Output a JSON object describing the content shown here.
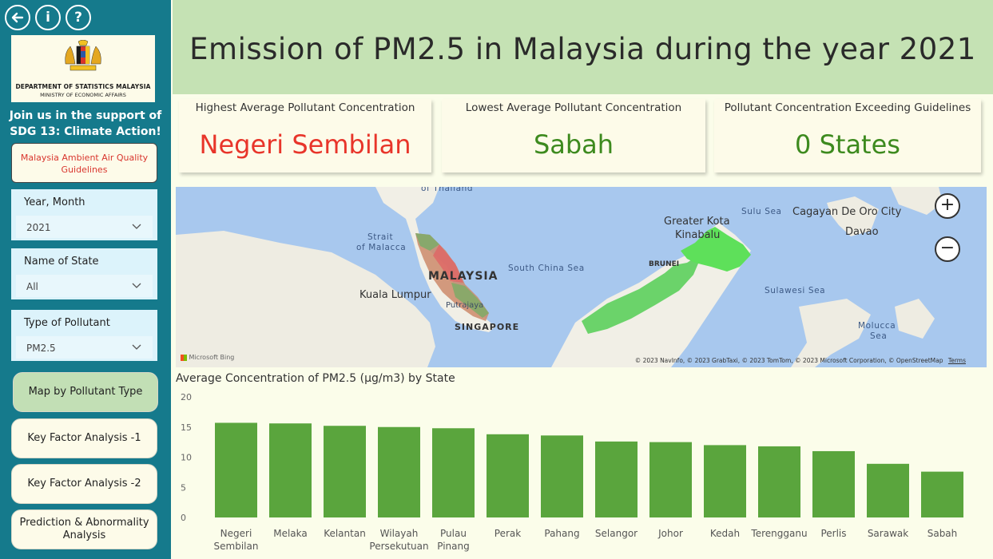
{
  "nav": {
    "back": "back-arrow-icon",
    "info_label": "i",
    "help_label": "?"
  },
  "logo": {
    "title": "DEPARTMENT OF STATISTICS MALAYSIA",
    "subtitle": "MINISTRY OF ECONOMIC AFFAIRS"
  },
  "sidebar": {
    "join_text": "Join us in the support of SDG 13: Climate Action!",
    "guidelines_button": "Malaysia Ambient Air Quality Guidelines",
    "filters": [
      {
        "label": "Year, Month",
        "value": "2021"
      },
      {
        "label": "Name of State",
        "value": "All"
      },
      {
        "label": "Type of Pollutant",
        "value": "PM2.5"
      }
    ],
    "buttons": [
      "Map by Pollutant Type",
      "Key Factor Analysis -1",
      "Key Factor Analysis -2",
      "Prediction & Abnormality Analysis"
    ]
  },
  "header": {
    "title": "Emission of PM2.5 in Malaysia during the year 2021"
  },
  "kpis": [
    {
      "label": "Highest Average Pollutant Concentration",
      "value": "Negeri Sembilan",
      "color": "#e8352a"
    },
    {
      "label": "Lowest Average Pollutant Concentration",
      "value": "Sabah",
      "color": "#3d8a1e"
    },
    {
      "label": "Pollutant Concentration Exceeding Guidelines",
      "value": "0 States",
      "color": "#3d8a1e"
    }
  ],
  "map": {
    "labels": {
      "thailand": "of Thailand",
      "strait": "Strait",
      "strait2": "of Malacca",
      "malaysia": "MALAYSIA",
      "kl": "Kuala Lumpur",
      "putrajaya": "Putrajaya",
      "singapore": "SINGAPORE",
      "south_china_sea": "South China Sea",
      "brunei": "BRUNEI",
      "kk": "Greater Kota",
      "kk2": "Kinabalu",
      "sulu": "Sulu Sea",
      "cagayan": "Cagayan De Oro City",
      "davao": "Davao",
      "sulawesi": "Sulawesi Sea",
      "molucca": "Molucca",
      "molucca2": "Sea"
    },
    "zoom_in": "+",
    "zoom_out": "−",
    "bing": "Microsoft Bing",
    "attribution": "© 2023 NavInfo, © 2023 GrabTaxi, © 2023 TomTom, © 2023 Microsoft Corporation, © OpenStreetMap",
    "terms": "Terms"
  },
  "chart_title": "Average Concentration of PM2.5 (µg/m3) by State",
  "chart_data": {
    "type": "bar",
    "title": "Average Concentration of PM2.5 (µg/m3) by State",
    "categories": [
      "Negeri Sembilan",
      "Melaka",
      "Kelantan",
      "Wilayah Persekutuan",
      "Pulau Pinang",
      "Perak",
      "Pahang",
      "Selangor",
      "Johor",
      "Kedah",
      "Terengganu",
      "Perlis",
      "Sarawak",
      "Sabah"
    ],
    "category_lines": [
      [
        "Negeri",
        "Sembilan"
      ],
      [
        "Melaka"
      ],
      [
        "Kelantan"
      ],
      [
        "Wilayah",
        "Persekutuan"
      ],
      [
        "Pulau",
        "Pinang"
      ],
      [
        "Perak"
      ],
      [
        "Pahang"
      ],
      [
        "Selangor"
      ],
      [
        "Johor"
      ],
      [
        "Kedah"
      ],
      [
        "Terengganu"
      ],
      [
        "Perlis"
      ],
      [
        "Sarawak"
      ],
      [
        "Sabah"
      ]
    ],
    "values": [
      15.7,
      15.6,
      15.2,
      15.0,
      14.8,
      13.8,
      13.6,
      12.6,
      12.5,
      12.0,
      11.8,
      11.0,
      8.9,
      7.6
    ],
    "yticks": [
      "0",
      "5",
      "10",
      "15",
      "20"
    ],
    "ylim": [
      0,
      20
    ],
    "bar_color": "#5aa53d",
    "grid": false
  }
}
